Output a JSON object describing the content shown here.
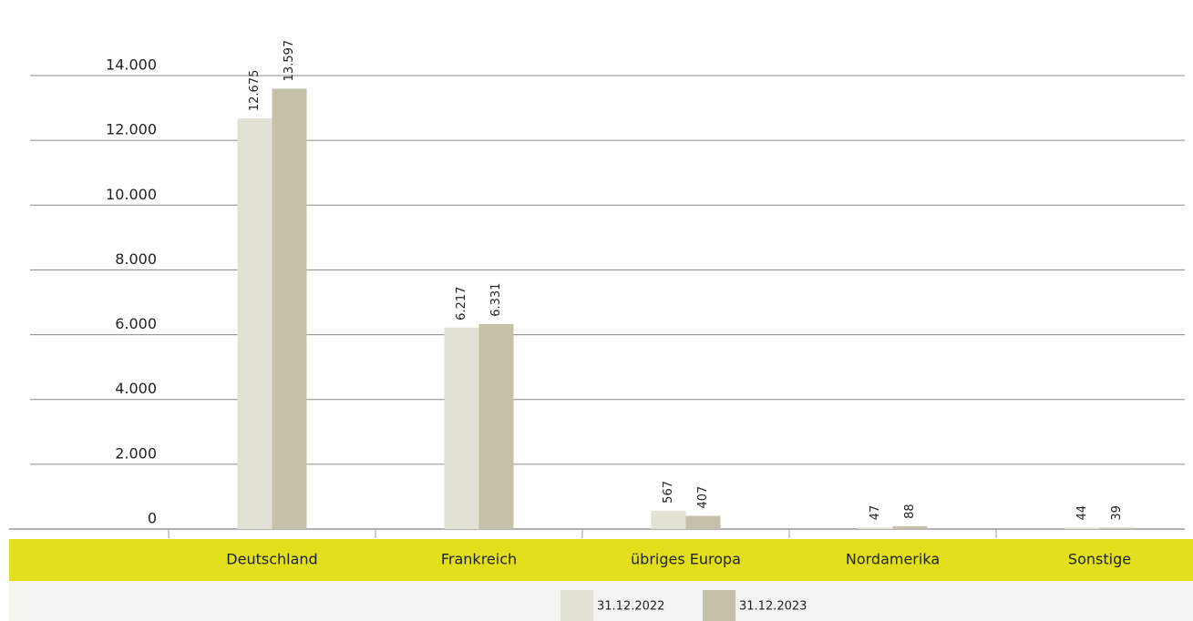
{
  "chart_data": {
    "type": "bar",
    "categories": [
      "Deutschland",
      "Frankreich",
      "übriges Europa",
      "Nordamerika",
      "Sonstige"
    ],
    "series": [
      {
        "name": "31.12.2022",
        "color": "#e2e1d6",
        "values": [
          12675,
          6217,
          567,
          47,
          44
        ],
        "value_labels": [
          "12.675",
          "6.217",
          "567",
          "47",
          "44"
        ]
      },
      {
        "name": "31.12.2023",
        "color": "#c5c0a8",
        "values": [
          13597,
          6331,
          407,
          88,
          39
        ],
        "value_labels": [
          "13.597",
          "6.331",
          "407",
          "88",
          "39"
        ]
      }
    ],
    "ylim": [
      0,
      14000
    ],
    "yticks": [
      0,
      {
        "value": 2000,
        "label": "2.000"
      },
      {
        "value": 4000,
        "label": "4.000"
      },
      {
        "value": 6000,
        "label": "6.000"
      },
      {
        "value": 8000,
        "label": "8.000"
      },
      {
        "value": 10000,
        "label": "10.000"
      },
      {
        "value": 12000,
        "label": "12.000"
      },
      {
        "value": 14000,
        "label": "14.000"
      }
    ],
    "grid": true
  }
}
